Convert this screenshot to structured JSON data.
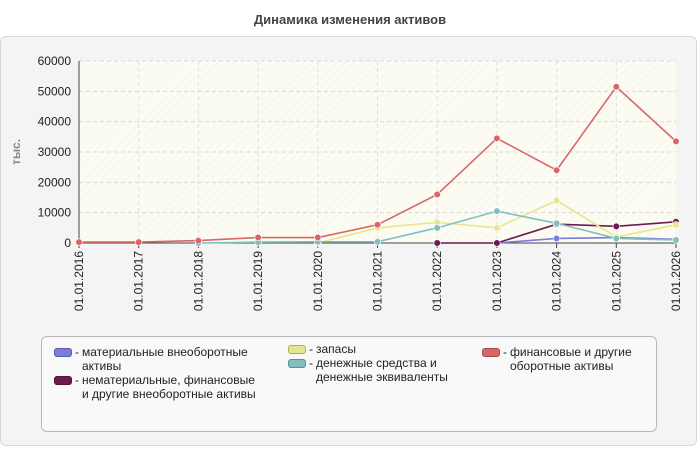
{
  "title": "Динамика изменения активов",
  "chart_data": {
    "type": "line",
    "title": "Динамика изменения активов",
    "ylabel": "тыс.",
    "xlabel": "",
    "ylim": [
      0,
      60000
    ],
    "yticks": [
      0,
      10000,
      20000,
      30000,
      40000,
      50000,
      60000
    ],
    "grid": true,
    "legend_position": "bottom",
    "categories": [
      "01.01.2016",
      "01.01.2017",
      "01.01.2018",
      "01.01.2019",
      "01.01.2020",
      "01.01.2021",
      "01.01.2022",
      "01.01.2023",
      "01.01.2024",
      "01.01.2025",
      "01.01.2026"
    ],
    "series": [
      {
        "name": "материальные внеоборотные активы",
        "color": "#7b7be0",
        "values": [
          null,
          null,
          null,
          null,
          null,
          null,
          null,
          0,
          1500,
          1800,
          1200
        ]
      },
      {
        "name": "нематериальные, финансовые и другие внеоборотные активы",
        "color": "#6e1a4e",
        "values": [
          null,
          null,
          null,
          null,
          null,
          null,
          0,
          0,
          6200,
          5500,
          7000
        ]
      },
      {
        "name": "запасы",
        "color": "#e6e68c",
        "values": [
          null,
          null,
          null,
          null,
          0,
          5000,
          6800,
          5000,
          14000,
          2000,
          6000
        ]
      },
      {
        "name": "денежные средства и денежные эквиваленты",
        "color": "#7fbfbf",
        "values": [
          null,
          null,
          0,
          300,
          400,
          400,
          5000,
          10500,
          6500,
          1500,
          1000
        ]
      },
      {
        "name": "финансовые и другие оборотные активы",
        "color": "#d96666",
        "values": [
          300,
          300,
          800,
          1800,
          1800,
          6000,
          16000,
          34500,
          24000,
          51500,
          33500
        ]
      }
    ]
  },
  "legend": {
    "dash": "-",
    "items": [
      {
        "text": "материальные внеоборотные активы"
      },
      {
        "text": "нематериальные, финансовые и другие внеоборотные активы"
      },
      {
        "text": "запасы"
      },
      {
        "text": "денежные средства и денежные эквиваленты"
      },
      {
        "text": "финансовые и другие оборотные активы"
      }
    ]
  }
}
